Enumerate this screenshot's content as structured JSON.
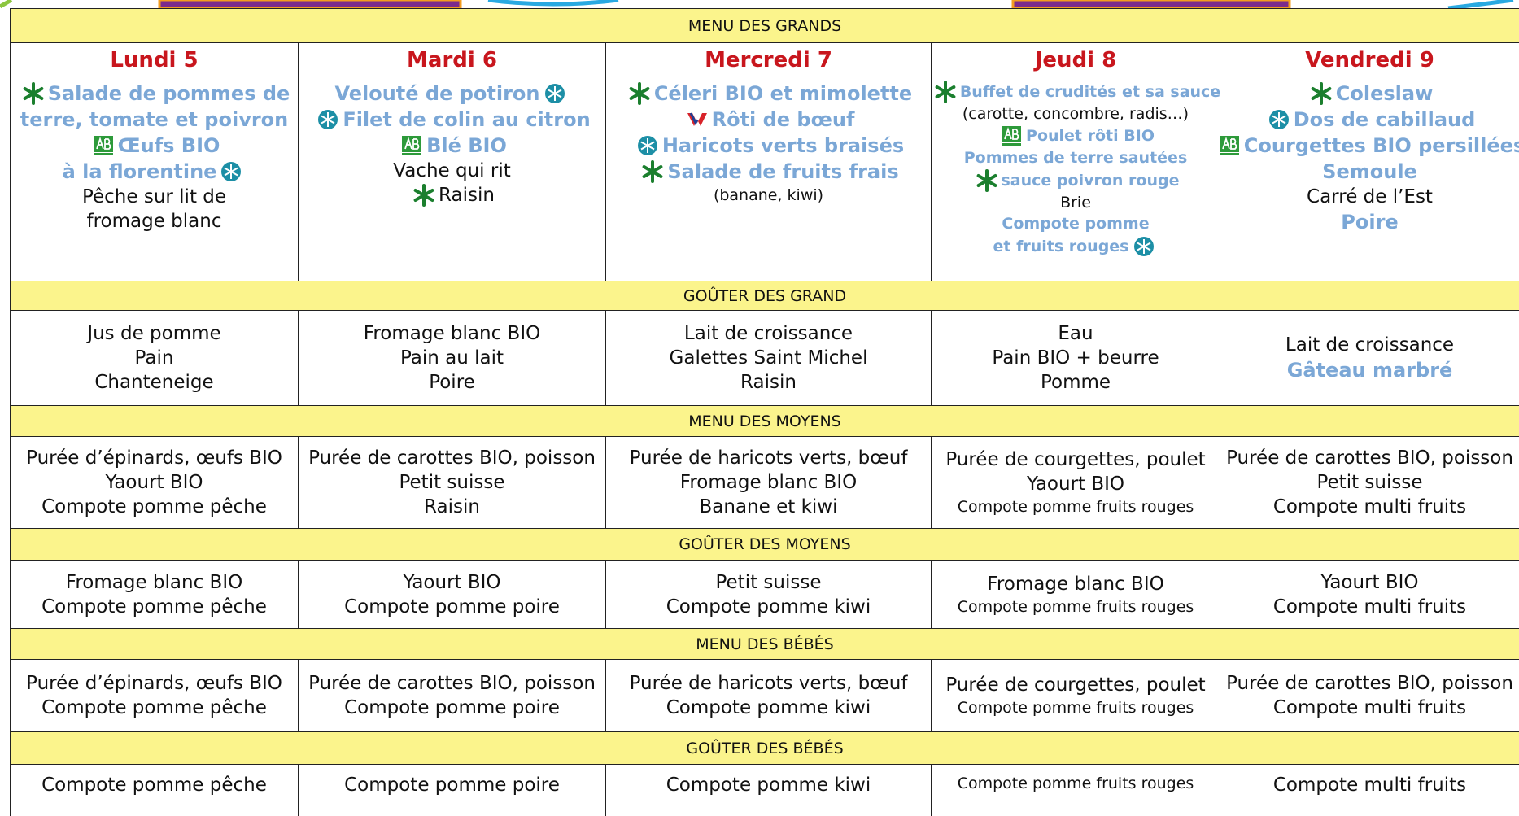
{
  "header": {
    "title": "MENU DES GRANDS"
  },
  "days": [
    "Lundi 5",
    "Mardi 6",
    "Mercredi 7",
    "Jeudi 8",
    "Vendredi 9"
  ],
  "menu_grands": [
    [
      "Salade de pommes de",
      "terre, tomate et poivron",
      "Œufs BIO",
      "à la florentine",
      "Pêche sur lit de",
      "fromage blanc"
    ],
    [
      "Velouté de potiron",
      "Filet de colin au citron",
      "Blé BIO",
      "Vache qui rit",
      "Raisin"
    ],
    [
      "Céleri BIO et mimolette",
      "Rôti de bœuf",
      "Haricots verts braisés",
      "Salade de fruits frais",
      "(banane, kiwi)"
    ],
    [
      "Buffet de crudités et sa sauce",
      "(carotte, concombre, radis…)",
      "Poulet rôti BIO",
      "Pommes de terre sautées",
      "sauce poivron rouge",
      "Brie",
      "Compote pomme",
      "et fruits rouges"
    ],
    [
      "Coleslaw",
      "Dos de cabillaud",
      "Courgettes BIO persillées",
      "Semoule",
      "Carré de l’Est",
      "Poire"
    ]
  ],
  "sections": [
    {
      "title": "GOÛTER DES GRAND",
      "cells": [
        [
          "Jus de pomme",
          "Pain",
          "Chanteneige"
        ],
        [
          "Fromage blanc BIO",
          "Pain au lait",
          "Poire"
        ],
        [
          "Lait de croissance",
          "Galettes Saint Michel",
          "Raisin"
        ],
        [
          "Eau",
          "Pain BIO + beurre",
          "Pomme"
        ],
        [
          "Lait de croissance",
          "Gâteau marbré"
        ]
      ]
    },
    {
      "title": "MENU DES MOYENS",
      "cells": [
        [
          "Purée d’épinards, œufs BIO",
          "Yaourt BIO",
          "Compote pomme pêche"
        ],
        [
          "Purée de carottes BIO, poisson",
          "Petit suisse",
          "Raisin"
        ],
        [
          "Purée de haricots verts, bœuf",
          "Fromage blanc BIO",
          "Banane et kiwi"
        ],
        [
          "Purée de courgettes, poulet",
          "Yaourt BIO",
          "Compote pomme fruits rouges"
        ],
        [
          "Purée de carottes BIO, poisson",
          "Petit suisse",
          "Compote multi fruits"
        ]
      ]
    },
    {
      "title": "GOÛTER DES MOYENS",
      "cells": [
        [
          "Fromage blanc BIO",
          "Compote pomme pêche"
        ],
        [
          "Yaourt BIO",
          "Compote pomme poire"
        ],
        [
          "Petit suisse",
          "Compote pomme kiwi"
        ],
        [
          "Fromage blanc BIO",
          "Compote pomme fruits rouges"
        ],
        [
          "Yaourt BIO",
          "Compote multi fruits"
        ]
      ]
    },
    {
      "title": "MENU DES BÉBÉS",
      "cells": [
        [
          "Purée d’épinards, œufs BIO",
          "Compote pomme pêche"
        ],
        [
          "Purée de carottes BIO, poisson",
          "Compote pomme poire"
        ],
        [
          "Purée de haricots verts, bœuf",
          "Compote pomme kiwi"
        ],
        [
          "Purée de courgettes, poulet",
          "Compote pomme fruits rouges"
        ],
        [
          "Purée de carottes BIO, poisson",
          "Compote multi fruits"
        ]
      ]
    },
    {
      "title": "GOÛTER DES BÉBÉS",
      "cells": [
        [
          "Compote pomme pêche"
        ],
        [
          "Compote pomme poire"
        ],
        [
          "Compote pomme kiwi"
        ],
        [
          "Compote pomme fruits rouges"
        ],
        [
          "Compote multi fruits"
        ]
      ]
    }
  ]
}
